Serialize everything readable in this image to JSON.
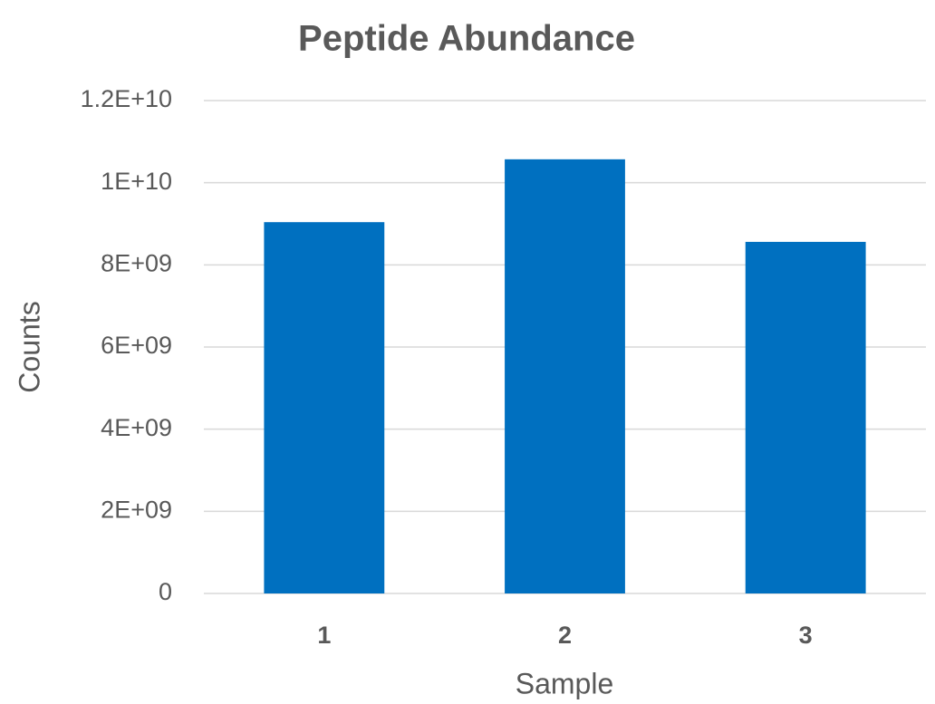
{
  "chart_data": {
    "type": "bar",
    "title": "Peptide Abundance",
    "x_label": "Sample",
    "y_label": "Counts",
    "categories": [
      "1",
      "2",
      "3"
    ],
    "values": [
      9040000000,
      10570000000,
      8560000000
    ],
    "color": "#0070c0",
    "ylim": [
      0,
      12000000000
    ],
    "yticks": [
      0,
      {
        "value": 2000000000,
        "label": "2E+09"
      },
      {
        "value": 4000000000,
        "label": "4E+09"
      },
      {
        "value": 6000000000,
        "label": "6E+09"
      },
      {
        "value": 8000000000,
        "label": "8E+09"
      },
      {
        "value": 10000000000,
        "label": "1E+10"
      },
      {
        "value": 12000000000,
        "label": "1.2E+10"
      }
    ],
    "grid": true
  }
}
